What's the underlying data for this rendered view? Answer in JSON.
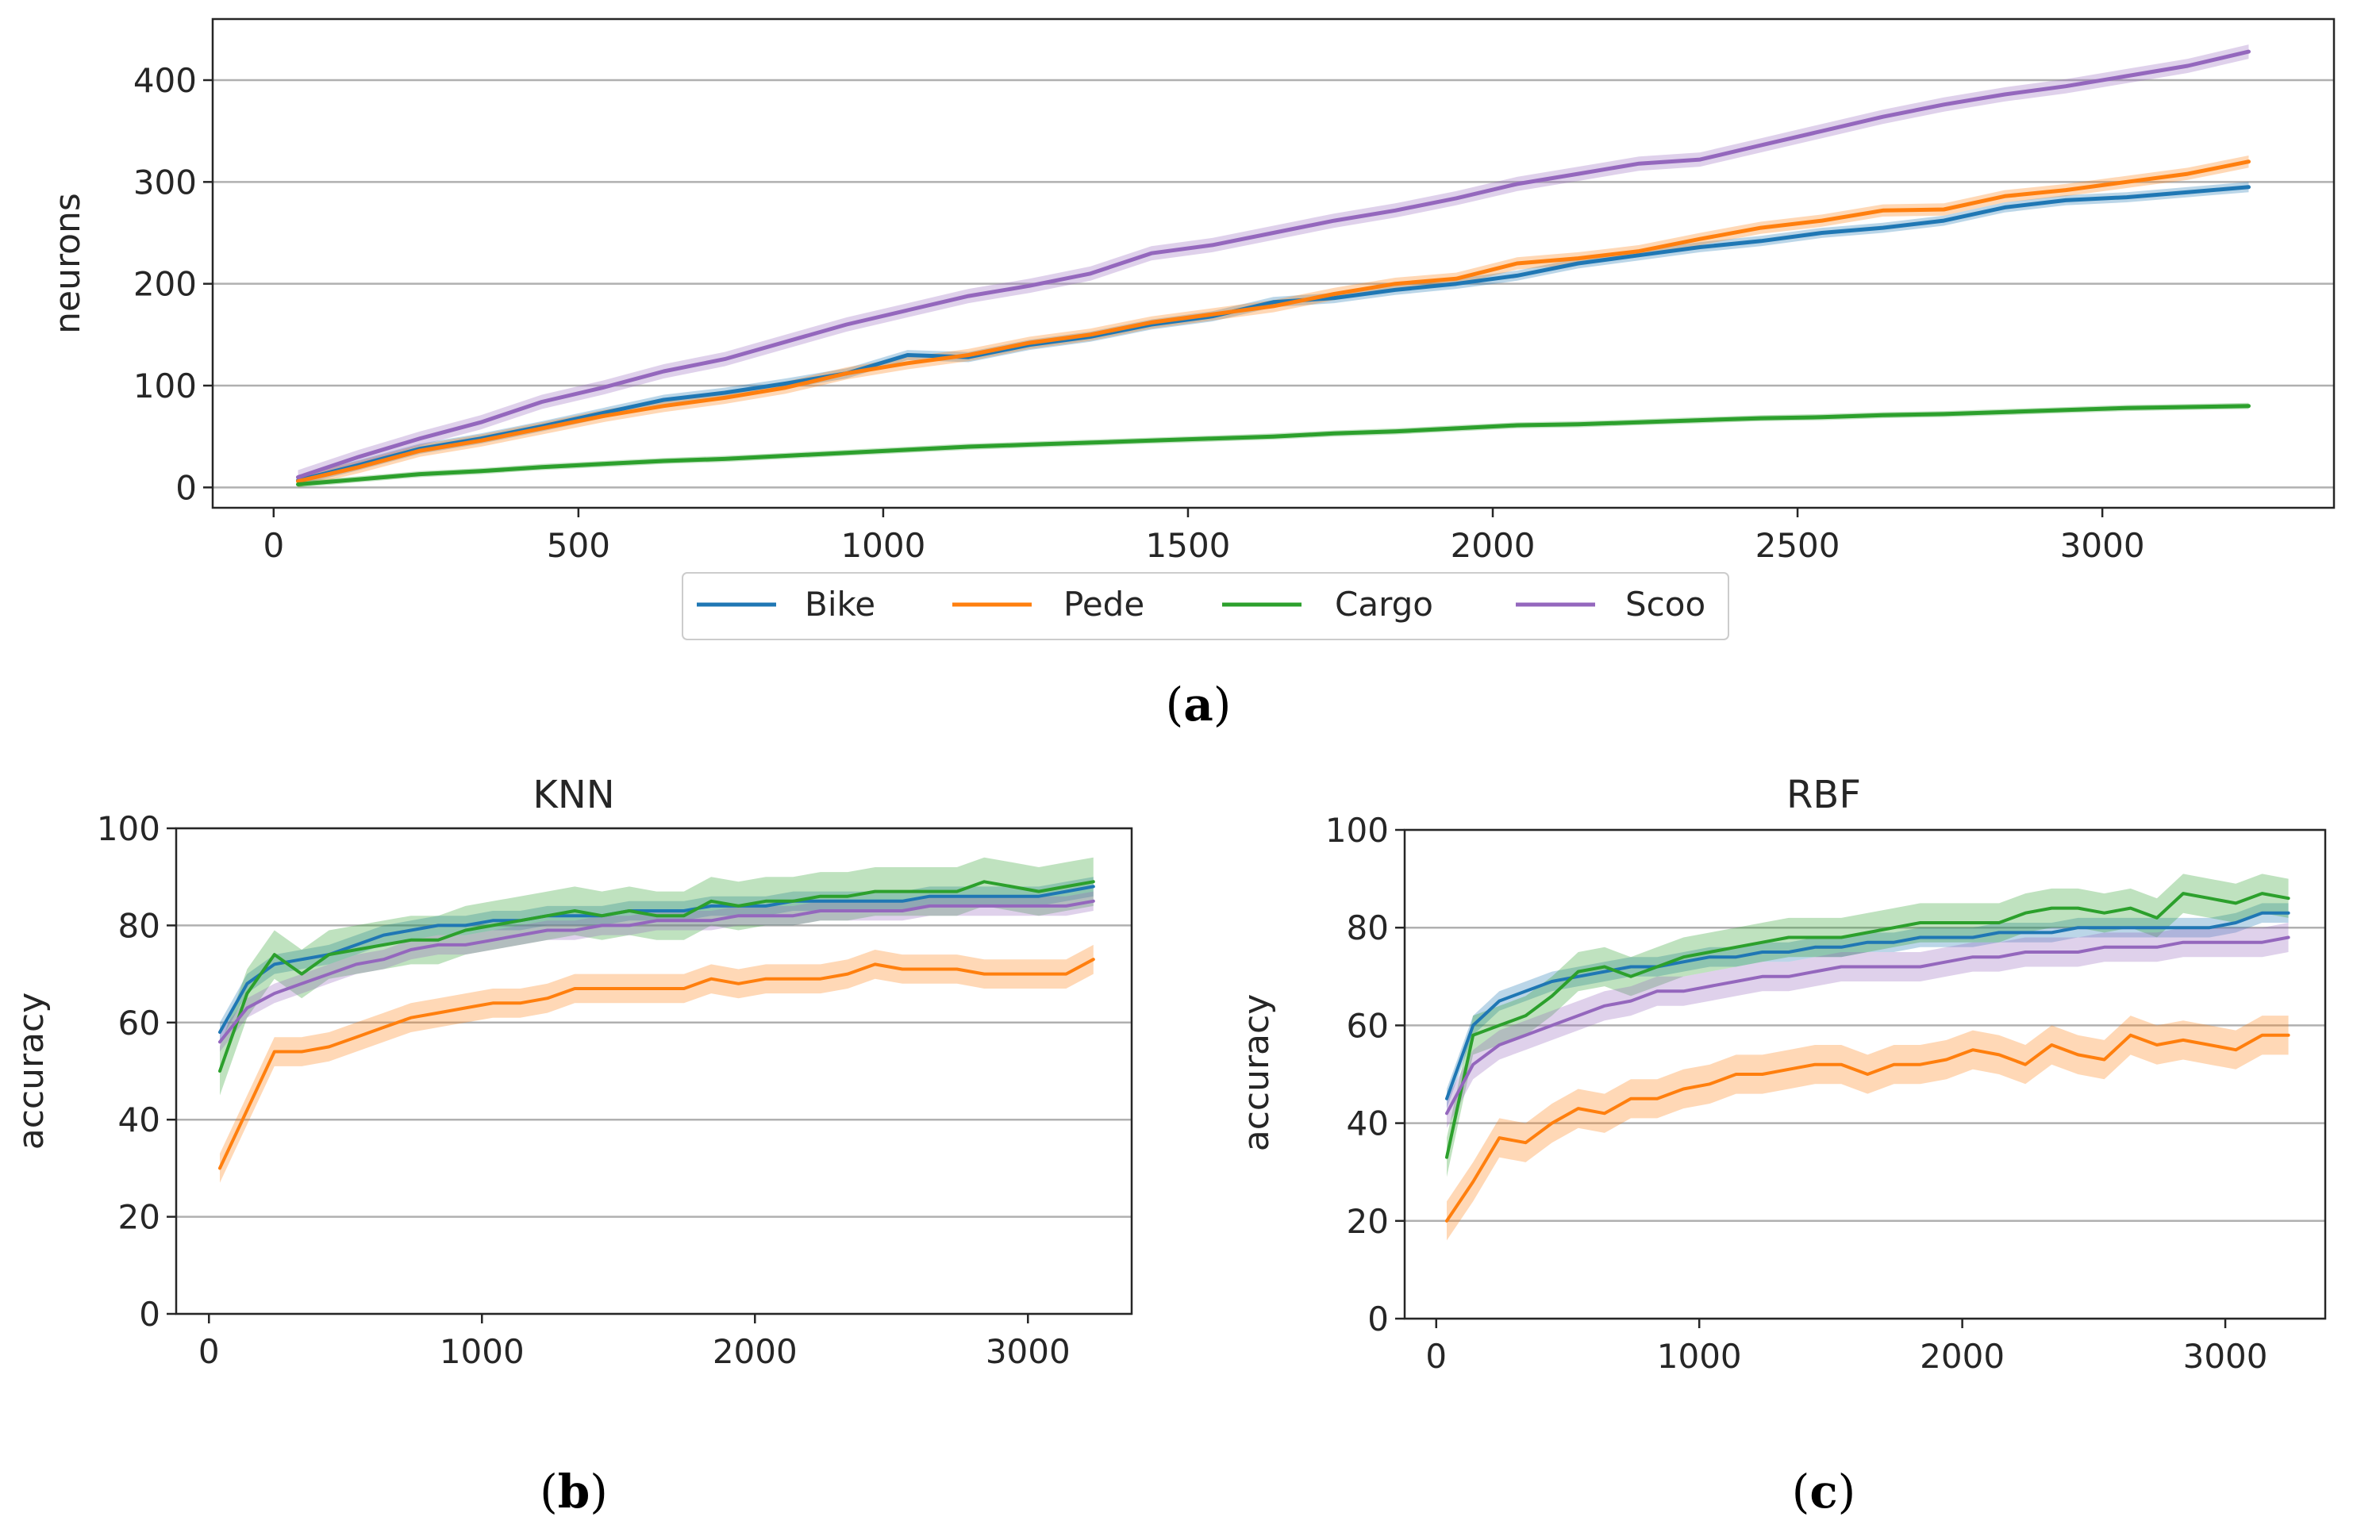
{
  "captions": [
    "(a)",
    "(b)",
    "(c)"
  ],
  "chart_data": [
    {
      "type": "line",
      "panel": "a",
      "title": "",
      "xlabel": "",
      "ylabel": "neurons",
      "xlim": [
        -100,
        3380
      ],
      "ylim": [
        -20,
        460
      ],
      "xticks": [
        0,
        500,
        1000,
        1500,
        2000,
        2500,
        3000
      ],
      "yticks": [
        0,
        100,
        200,
        300,
        400
      ],
      "grid": "horizontal",
      "legend": {
        "placement": "bottom-center",
        "entries": [
          "Bike",
          "Pede",
          "Cargo",
          "Scoo"
        ]
      },
      "x": [
        40,
        140,
        240,
        340,
        440,
        540,
        640,
        740,
        840,
        940,
        1040,
        1140,
        1240,
        1340,
        1440,
        1540,
        1640,
        1740,
        1840,
        1940,
        2040,
        2140,
        2240,
        2340,
        2440,
        2540,
        2640,
        2740,
        2840,
        2940,
        3040,
        3140,
        3240
      ],
      "series": [
        {
          "name": "Bike",
          "color": "#1f77b4",
          "band": 5,
          "values": [
            7,
            22,
            38,
            48,
            60,
            73,
            86,
            93,
            102,
            112,
            130,
            128,
            140,
            148,
            160,
            168,
            182,
            186,
            194,
            200,
            208,
            220,
            228,
            236,
            242,
            250,
            255,
            262,
            275,
            282,
            285,
            290,
            295
          ]
        },
        {
          "name": "Pede",
          "color": "#ff7f0e",
          "band": 6,
          "values": [
            6,
            20,
            36,
            46,
            58,
            70,
            80,
            88,
            98,
            112,
            122,
            130,
            142,
            150,
            162,
            170,
            178,
            190,
            200,
            205,
            220,
            225,
            232,
            244,
            255,
            262,
            272,
            273,
            286,
            292,
            300,
            308,
            320
          ]
        },
        {
          "name": "Cargo",
          "color": "#2ca02c",
          "band": 3,
          "values": [
            3,
            8,
            13,
            16,
            20,
            23,
            26,
            28,
            31,
            34,
            37,
            40,
            42,
            44,
            46,
            48,
            50,
            53,
            55,
            58,
            61,
            62,
            64,
            66,
            68,
            69,
            71,
            72,
            74,
            76,
            78,
            79,
            80
          ]
        },
        {
          "name": "Scoo",
          "color": "#9467bd",
          "band": 7,
          "values": [
            10,
            30,
            48,
            64,
            84,
            98,
            114,
            126,
            143,
            160,
            174,
            188,
            198,
            210,
            230,
            238,
            250,
            262,
            272,
            284,
            298,
            308,
            318,
            322,
            336,
            350,
            364,
            376,
            386,
            394,
            404,
            414,
            428
          ]
        }
      ]
    },
    {
      "type": "line",
      "panel": "b",
      "title": "KNN",
      "xlabel": "",
      "ylabel": "accuracy",
      "xlim": [
        -120,
        3380
      ],
      "ylim": [
        0,
        100
      ],
      "xticks": [
        0,
        1000,
        2000,
        3000
      ],
      "yticks": [
        0,
        20,
        40,
        60,
        80,
        100
      ],
      "grid": "horizontal",
      "x": [
        40,
        140,
        240,
        340,
        440,
        540,
        640,
        740,
        840,
        940,
        1040,
        1140,
        1240,
        1340,
        1440,
        1540,
        1640,
        1740,
        1840,
        1940,
        2040,
        2140,
        2240,
        2340,
        2440,
        2540,
        2640,
        2740,
        2840,
        2940,
        3040,
        3140,
        3240
      ],
      "series": [
        {
          "name": "Bike",
          "color": "#1f77b4",
          "band": 2,
          "values": [
            58,
            68,
            72,
            73,
            74,
            76,
            78,
            79,
            80,
            80,
            81,
            81,
            82,
            82,
            82,
            83,
            83,
            83,
            84,
            84,
            84,
            85,
            85,
            85,
            85,
            85,
            86,
            86,
            86,
            86,
            86,
            87,
            88
          ]
        },
        {
          "name": "Pede",
          "color": "#ff7f0e",
          "band": 3,
          "values": [
            30,
            42,
            54,
            54,
            55,
            57,
            59,
            61,
            62,
            63,
            64,
            64,
            65,
            67,
            67,
            67,
            67,
            67,
            69,
            68,
            69,
            69,
            69,
            70,
            72,
            71,
            71,
            71,
            70,
            70,
            70,
            70,
            73
          ]
        },
        {
          "name": "Cargo",
          "color": "#2ca02c",
          "band": 5,
          "values": [
            50,
            66,
            74,
            70,
            74,
            75,
            76,
            77,
            77,
            79,
            80,
            81,
            82,
            83,
            82,
            83,
            82,
            82,
            85,
            84,
            85,
            85,
            86,
            86,
            87,
            87,
            87,
            87,
            89,
            88,
            87,
            88,
            89
          ]
        },
        {
          "name": "Scoo",
          "color": "#9467bd",
          "band": 2,
          "values": [
            56,
            63,
            66,
            68,
            70,
            72,
            73,
            75,
            76,
            76,
            77,
            78,
            79,
            79,
            80,
            80,
            81,
            81,
            81,
            82,
            82,
            82,
            83,
            83,
            83,
            83,
            84,
            84,
            84,
            84,
            84,
            84,
            85
          ]
        }
      ]
    },
    {
      "type": "line",
      "panel": "c",
      "title": "RBF",
      "xlabel": "",
      "ylabel": "accuracy",
      "xlim": [
        -120,
        3380
      ],
      "ylim": [
        0,
        100
      ],
      "xticks": [
        0,
        1000,
        2000,
        3000
      ],
      "yticks": [
        0,
        20,
        40,
        60,
        80,
        100
      ],
      "grid": "horizontal",
      "x": [
        40,
        140,
        240,
        340,
        440,
        540,
        640,
        740,
        840,
        940,
        1040,
        1140,
        1240,
        1340,
        1440,
        1540,
        1640,
        1740,
        1840,
        1940,
        2040,
        2140,
        2240,
        2340,
        2440,
        2540,
        2640,
        2740,
        2840,
        2940,
        3040,
        3140,
        3240
      ],
      "series": [
        {
          "name": "Bike",
          "color": "#1f77b4",
          "band": 2,
          "values": [
            45,
            60,
            65,
            67,
            69,
            70,
            71,
            72,
            72,
            73,
            74,
            74,
            75,
            75,
            76,
            76,
            77,
            77,
            78,
            78,
            78,
            79,
            79,
            79,
            80,
            80,
            80,
            80,
            80,
            80,
            81,
            83,
            83
          ]
        },
        {
          "name": "Pede",
          "color": "#ff7f0e",
          "band": 4,
          "values": [
            20,
            28,
            37,
            36,
            40,
            43,
            42,
            45,
            45,
            47,
            48,
            50,
            50,
            51,
            52,
            52,
            50,
            52,
            52,
            53,
            55,
            54,
            52,
            56,
            54,
            53,
            58,
            56,
            57,
            56,
            55,
            58,
            58
          ]
        },
        {
          "name": "Cargo",
          "color": "#2ca02c",
          "band": 4,
          "values": [
            33,
            58,
            60,
            62,
            66,
            71,
            72,
            70,
            72,
            74,
            75,
            76,
            77,
            78,
            78,
            78,
            79,
            80,
            81,
            81,
            81,
            81,
            83,
            84,
            84,
            83,
            84,
            82,
            87,
            86,
            85,
            87,
            86
          ]
        },
        {
          "name": "Scoo",
          "color": "#9467bd",
          "band": 3,
          "values": [
            42,
            52,
            56,
            58,
            60,
            62,
            64,
            65,
            67,
            67,
            68,
            69,
            70,
            70,
            71,
            72,
            72,
            72,
            72,
            73,
            74,
            74,
            75,
            75,
            75,
            76,
            76,
            76,
            77,
            77,
            77,
            77,
            78
          ]
        }
      ]
    }
  ]
}
